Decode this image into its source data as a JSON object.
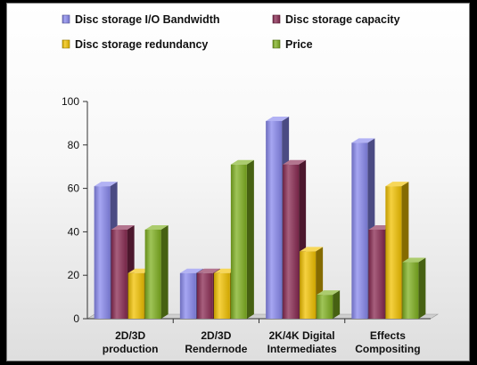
{
  "chart_data": {
    "type": "bar",
    "categories": [
      [
        "2D/3D",
        "production"
      ],
      [
        "2D/3D",
        "Rendernode"
      ],
      [
        "2K/4K Digital",
        "Intermediates"
      ],
      [
        "Effects",
        "Compositing"
      ]
    ],
    "series": [
      {
        "name": "Disc storage I/O Bandwidth",
        "color": "#8888ee",
        "values": [
          61,
          21,
          91,
          81
        ]
      },
      {
        "name": "Disc storage capacity",
        "color": "#8a2a52",
        "values": [
          41,
          21,
          71,
          41
        ]
      },
      {
        "name": "Disc storage redundancy",
        "color": "#f2c200",
        "values": [
          21,
          21,
          31,
          61
        ]
      },
      {
        "name": "Price",
        "color": "#7fb020",
        "values": [
          41,
          71,
          11,
          26
        ]
      }
    ],
    "ylim": [
      0,
      100
    ],
    "yticks": [
      "0",
      "20",
      "40",
      "60",
      "80",
      "100"
    ],
    "grid": false,
    "legend": "top",
    "three_d": true
  }
}
